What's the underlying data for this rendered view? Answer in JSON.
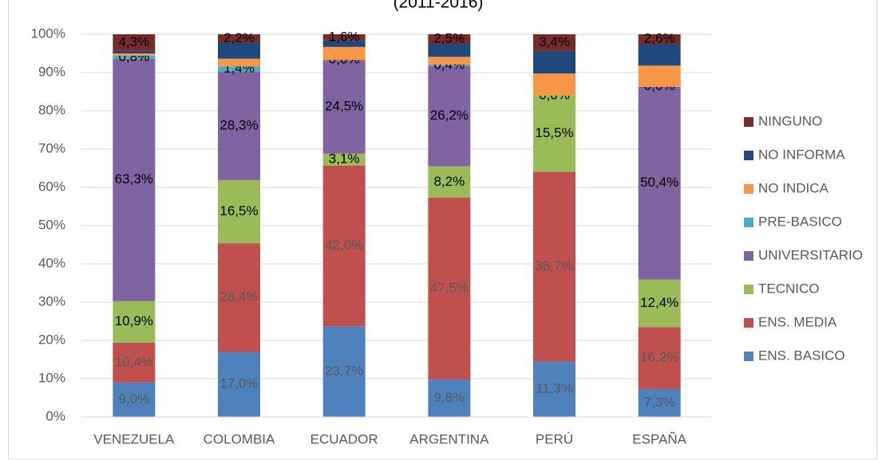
{
  "chart_data": {
    "type": "bar",
    "stacked": "percent",
    "title": "(2011-2016)",
    "categories": [
      "VENEZUELA",
      "COLOMBIA",
      "ECUADOR",
      "ARGENTINA",
      "PERÚ",
      "ESPAÑA"
    ],
    "series": [
      {
        "name": "ENS. BASICO",
        "color": "#4f81bd",
        "label_color": "#595959",
        "values": [
          9.0,
          17.0,
          23.7,
          9.8,
          11.3,
          7.3
        ],
        "value_labels": [
          "9,0%",
          "17,0%",
          "23,7%",
          "9,8%",
          "11,3%",
          "7,3%"
        ]
      },
      {
        "name": "ENS. MEDIA",
        "color": "#c0504d",
        "label_color": "#595959",
        "values": [
          10.4,
          28.4,
          42.0,
          47.5,
          38.7,
          16.2
        ],
        "value_labels": [
          "10,4%",
          "28,4%",
          "42,0%",
          "47,5%",
          "38,7%",
          "16,2%"
        ]
      },
      {
        "name": "TECNICO",
        "color": "#9bbb59",
        "label_color": "#000000",
        "values": [
          10.9,
          16.5,
          3.1,
          8.2,
          15.5,
          12.4
        ],
        "value_labels": [
          "10,9%",
          "16,5%",
          "3,1%",
          "8,2%",
          "15,5%",
          "12,4%"
        ]
      },
      {
        "name": "UNIVERSITARIO",
        "color": "#8064a2",
        "label_color": "#000000",
        "values": [
          63.3,
          28.3,
          24.5,
          26.2,
          0.0,
          50.4
        ],
        "value_labels": [
          "63,3%",
          "28,3%",
          "24,5%",
          "26,2%",
          "0,0%",
          "50,4%"
        ]
      },
      {
        "name": "PRE-BASICO",
        "color": "#4bacc6",
        "label_color": "#000000",
        "values": [
          0.8,
          1.4,
          0.0,
          0.4,
          0.0,
          0.0
        ],
        "value_labels": [
          "0,8%",
          "1,4%",
          "0,0%",
          "0,4%",
          null,
          "0,0%"
        ]
      },
      {
        "name": "NO INDICA",
        "color": "#f79646",
        "label_color": "#000000",
        "values": [
          0.6,
          2.0,
          3.4,
          2.0,
          4.5,
          5.5
        ],
        "value_labels": [
          null,
          null,
          null,
          null,
          null,
          null
        ]
      },
      {
        "name": "NO INFORMA",
        "color": "#1f497d",
        "label_color": "#000000",
        "values": [
          0.7,
          4.2,
          1.7,
          3.4,
          4.6,
          5.6
        ],
        "value_labels": [
          null,
          null,
          null,
          null,
          null,
          null
        ]
      },
      {
        "name": "NINGUNO",
        "color": "#772c2a",
        "label_color": "#000000",
        "values": [
          4.3,
          2.2,
          1.6,
          2.5,
          3.4,
          2.6
        ],
        "value_labels": [
          "4,3%",
          "2,2%",
          "1,6%",
          "2,5%",
          "3,4%",
          "2,6%"
        ]
      }
    ],
    "ylim": [
      0,
      100
    ],
    "yticks": [
      {
        "value": 0,
        "label": "0%"
      },
      {
        "value": 10,
        "label": "10%"
      },
      {
        "value": 20,
        "label": "20%"
      },
      {
        "value": 30,
        "label": "30%"
      },
      {
        "value": 40,
        "label": "40%"
      },
      {
        "value": 50,
        "label": "50%"
      },
      {
        "value": 60,
        "label": "60%"
      },
      {
        "value": 70,
        "label": "70%"
      },
      {
        "value": 80,
        "label": "80%"
      },
      {
        "value": 90,
        "label": "90%"
      },
      {
        "value": 100,
        "label": "100%"
      }
    ],
    "grid": true,
    "legend": "right"
  }
}
